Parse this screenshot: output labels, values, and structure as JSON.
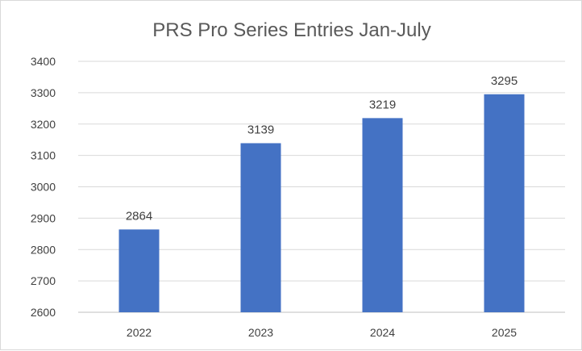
{
  "chart_data": {
    "type": "bar",
    "title": "PRS Pro Series Entries Jan-July",
    "xlabel": "",
    "ylabel": "",
    "categories": [
      "2022",
      "2023",
      "2024",
      "2025"
    ],
    "values": [
      2864,
      3139,
      3219,
      3295
    ],
    "ylim": [
      2600,
      3400
    ],
    "yticks": [
      "3400",
      "3300",
      "3200",
      "3100",
      "3000",
      "2900",
      "2800",
      "2700",
      "2600"
    ],
    "grid": true,
    "legend": "none",
    "bar_color": "#4472C4",
    "data_labels": [
      "2864",
      "3139",
      "3219",
      "3295"
    ]
  }
}
